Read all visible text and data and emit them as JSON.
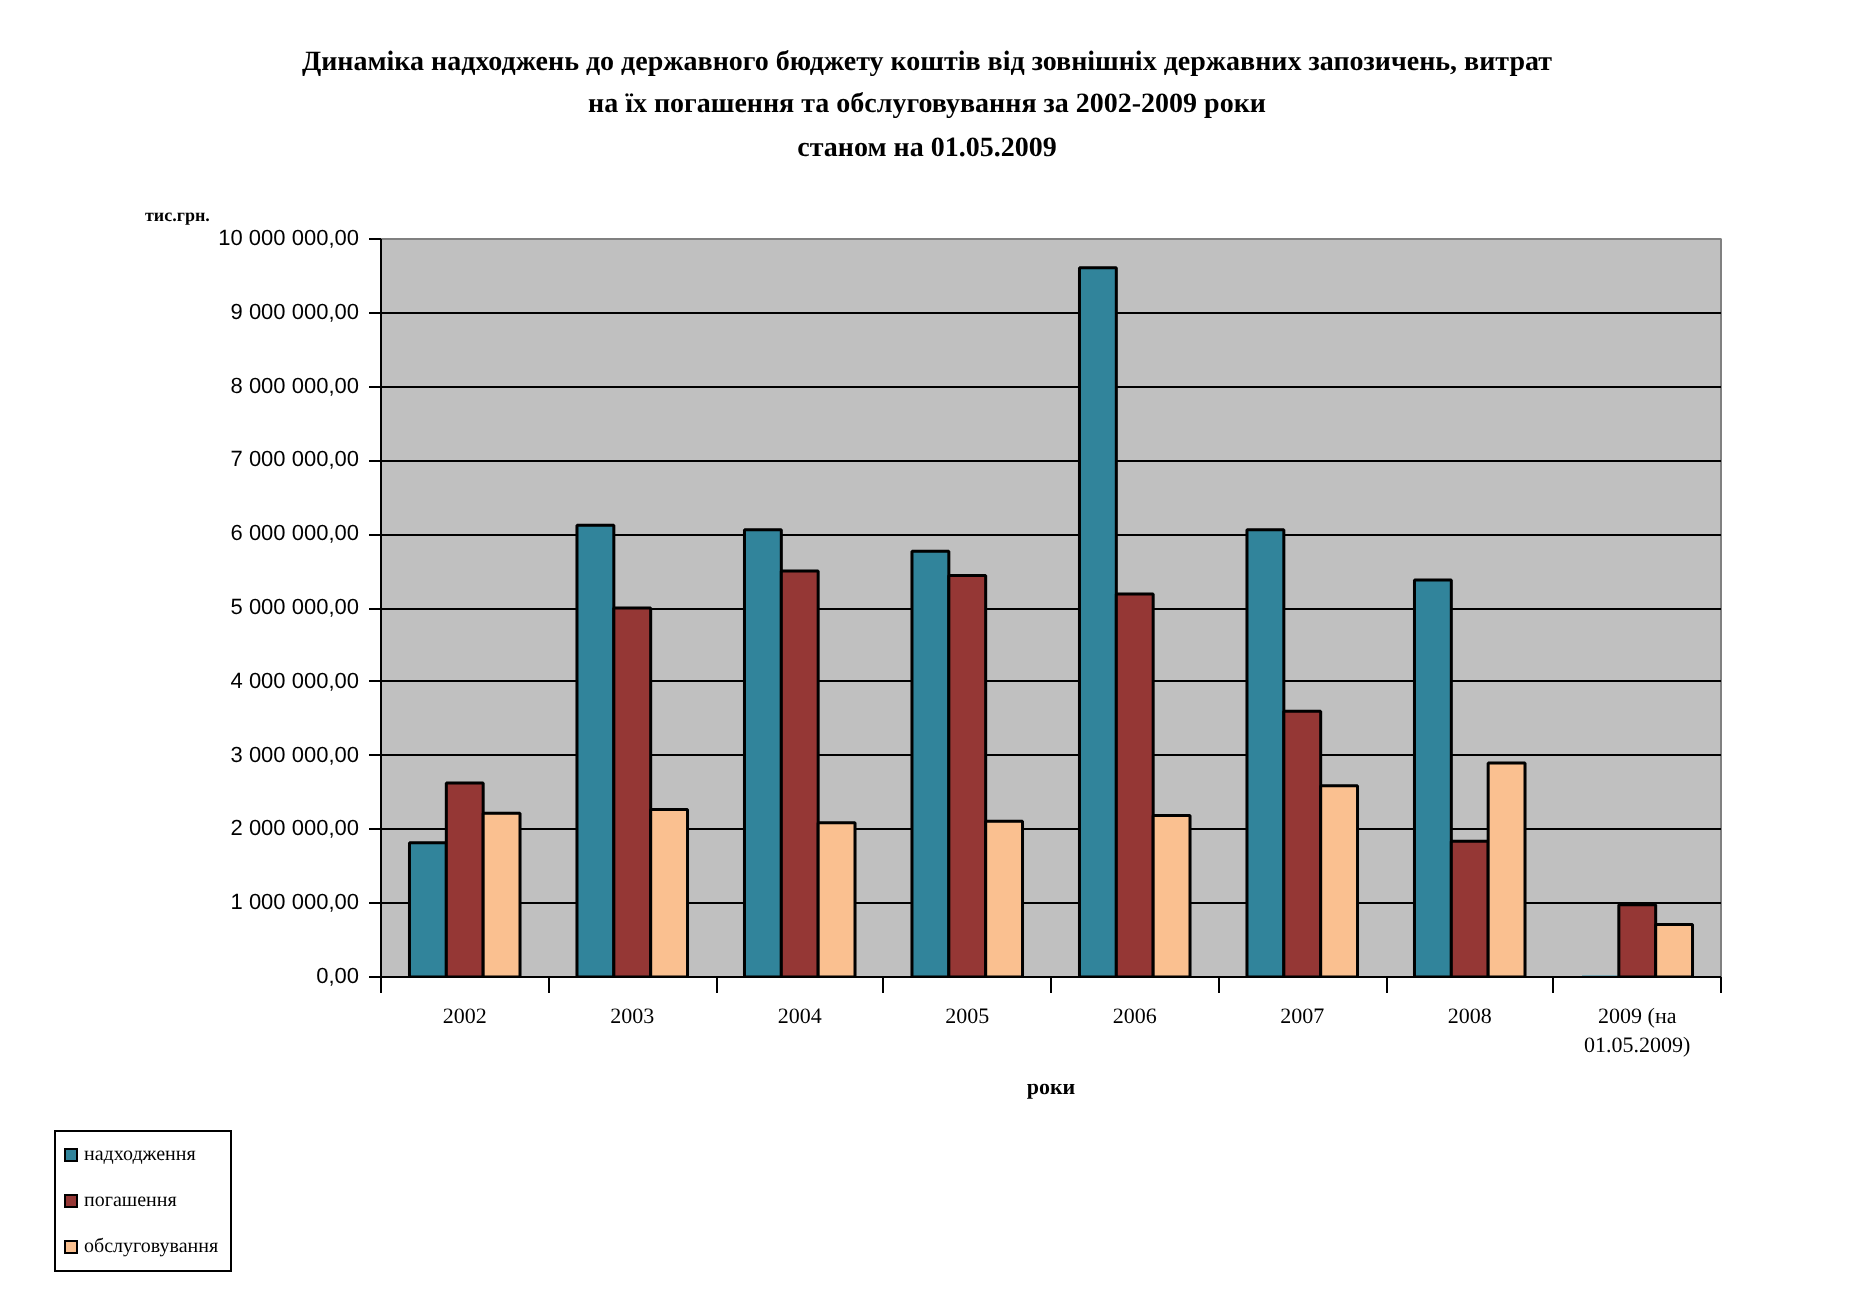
{
  "chart_data": {
    "type": "bar",
    "title": "Динаміка надходжень до державного бюджету коштів від зовнішніх державних запозичень, витрат на їх погашення та обслуговування за 2002-2009 роки",
    "subtitle": "станом на 01.05.2009",
    "xlabel": "роки",
    "ylabel": "тис.грн.",
    "categories": [
      "2002",
      "2003",
      "2004",
      "2005",
      "2006",
      "2007",
      "2008",
      "2009 (на 01.05.2009)"
    ],
    "series": [
      {
        "name": "надходження",
        "color": "#31849b",
        "values": [
          1820000,
          6120000,
          6060000,
          5770000,
          9610000,
          6060000,
          5380000,
          0
        ]
      },
      {
        "name": "погашення",
        "color": "#953735",
        "values": [
          2630000,
          5000000,
          5500000,
          5440000,
          5190000,
          3600000,
          1840000,
          980000
        ]
      },
      {
        "name": "обслуговування",
        "color": "#fac090",
        "values": [
          2220000,
          2270000,
          2090000,
          2110000,
          2190000,
          2590000,
          2900000,
          710000
        ]
      }
    ],
    "ylim": [
      0,
      10000000
    ],
    "yticks": [
      {
        "value": 0,
        "label": "0,00"
      },
      {
        "value": 1000000,
        "label": "1 000 000,00"
      },
      {
        "value": 2000000,
        "label": "2 000 000,00"
      },
      {
        "value": 3000000,
        "label": "3 000 000,00"
      },
      {
        "value": 4000000,
        "label": "4 000 000,00"
      },
      {
        "value": 5000000,
        "label": "5 000 000,00"
      },
      {
        "value": 6000000,
        "label": "6 000 000,00"
      },
      {
        "value": 7000000,
        "label": "7 000 000,00"
      },
      {
        "value": 8000000,
        "label": "8 000 000,00"
      },
      {
        "value": 9000000,
        "label": "9 000 000,00"
      },
      {
        "value": 10000000,
        "label": "10 000 000,00"
      }
    ],
    "grid": "y",
    "legend": "bottom left"
  }
}
